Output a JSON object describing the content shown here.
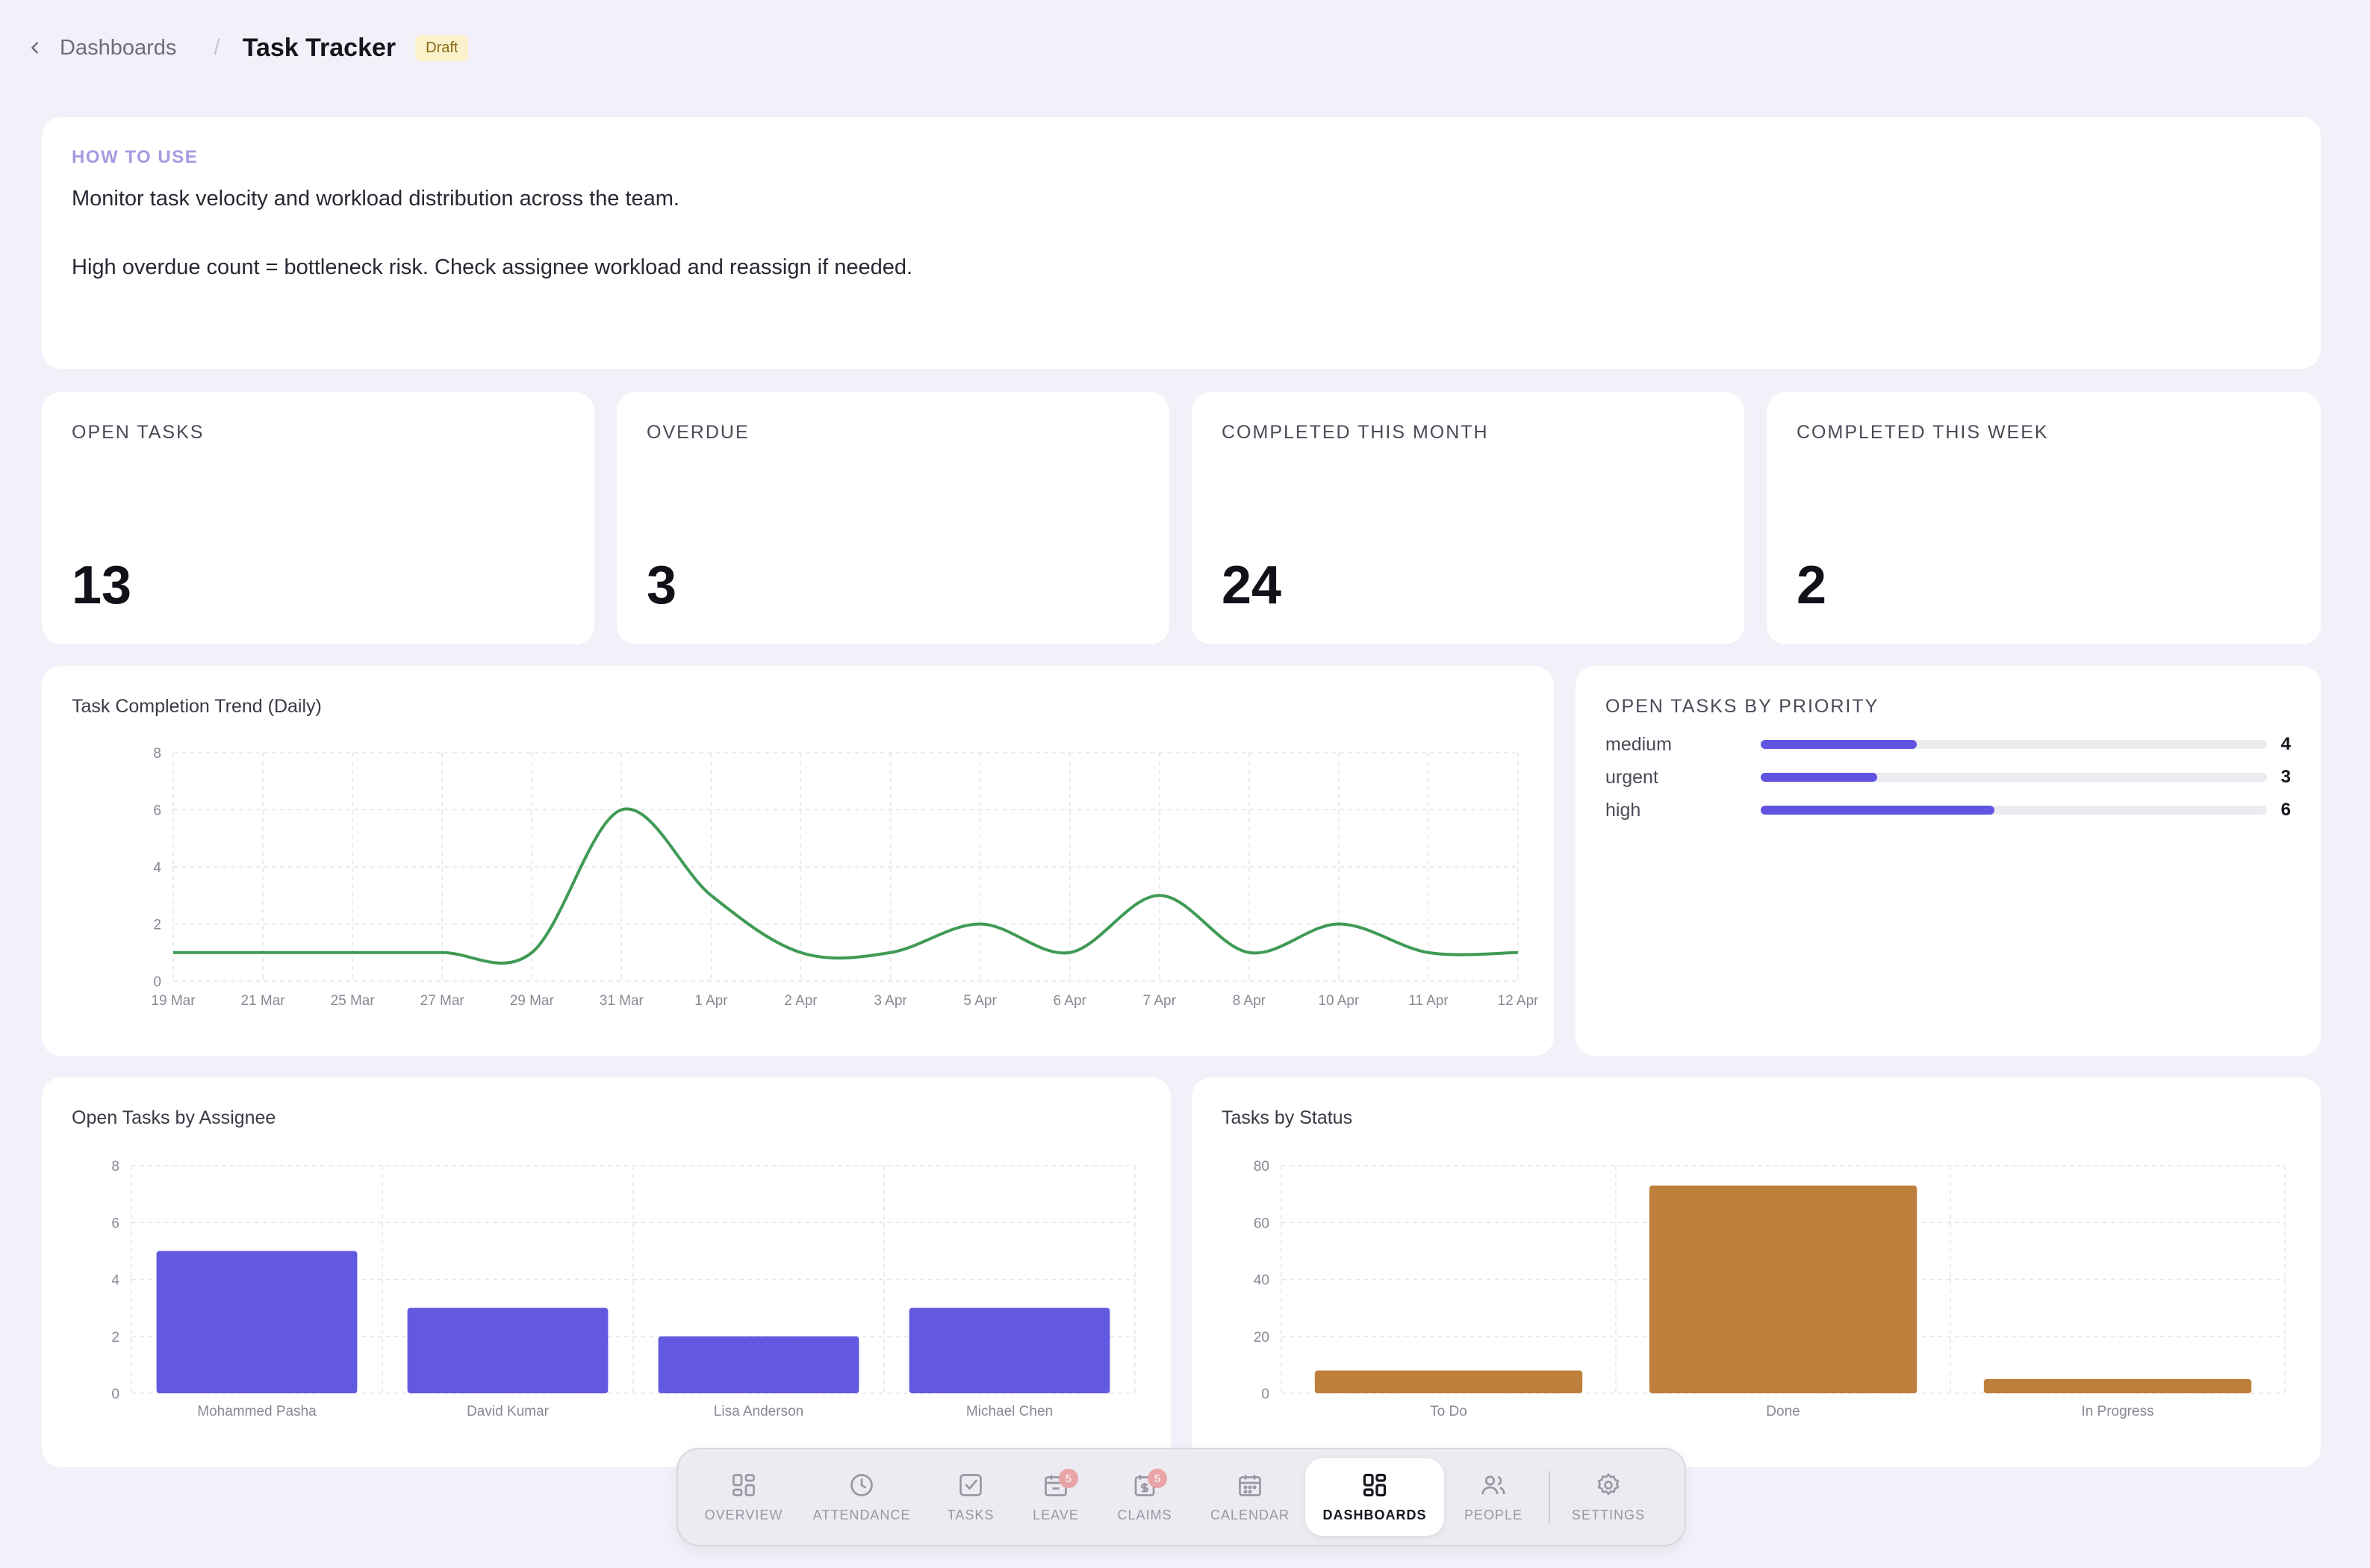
{
  "header": {
    "back_label": "Dashboards",
    "title": "Task Tracker",
    "badge": "Draft"
  },
  "howto": {
    "label": "HOW TO USE",
    "line1": "Monitor task velocity and workload distribution across the team.",
    "line2": "High overdue count = bottleneck risk. Check assignee workload and reassign if needed."
  },
  "kpis": [
    {
      "label": "OPEN TASKS",
      "value": "13"
    },
    {
      "label": "OVERDUE",
      "value": "3"
    },
    {
      "label": "COMPLETED THIS MONTH",
      "value": "24"
    },
    {
      "label": "COMPLETED THIS WEEK",
      "value": "2"
    }
  ],
  "priority": {
    "title": "OPEN TASKS BY PRIORITY",
    "max": 13,
    "rows": [
      {
        "name": "medium",
        "count": 4
      },
      {
        "name": "urgent",
        "count": 3
      },
      {
        "name": "high",
        "count": 6
      }
    ]
  },
  "chart_data": [
    {
      "type": "line",
      "title": "Task Completion Trend (Daily)",
      "x": [
        "19 Mar",
        "21 Mar",
        "25 Mar",
        "27 Mar",
        "29 Mar",
        "31 Mar",
        "1 Apr",
        "2 Apr",
        "3 Apr",
        "5 Apr",
        "6 Apr",
        "7 Apr",
        "8 Apr",
        "10 Apr",
        "11 Apr",
        "12 Apr"
      ],
      "values": [
        1,
        1,
        1,
        1,
        1,
        6,
        3,
        1,
        1,
        2,
        1,
        3,
        1,
        2,
        1,
        1
      ],
      "ylim": [
        0,
        8
      ],
      "yticks": [
        0,
        2,
        4,
        6,
        8
      ],
      "color": "#3f9a54",
      "grid": true
    },
    {
      "type": "bar",
      "title": "Open Tasks by Assignee",
      "categories": [
        "Mohammed Pasha",
        "David Kumar",
        "Lisa Anderson",
        "Michael Chen"
      ],
      "values": [
        5,
        3,
        2,
        3
      ],
      "ylim": [
        0,
        8
      ],
      "yticks": [
        0,
        2,
        4,
        6,
        8
      ],
      "color": "#6259e0",
      "grid": true
    },
    {
      "type": "bar",
      "title": "Tasks by Status",
      "categories": [
        "To Do",
        "Done",
        "In Progress"
      ],
      "values": [
        8,
        73,
        5
      ],
      "ylim": [
        0,
        80
      ],
      "yticks": [
        0,
        20,
        40,
        60,
        80
      ],
      "color": "#bf7f3c",
      "grid": true
    }
  ],
  "nav": {
    "items": [
      {
        "label": "OVERVIEW",
        "icon": "grid-icon"
      },
      {
        "label": "ATTENDANCE",
        "icon": "clock-icon"
      },
      {
        "label": "TASKS",
        "icon": "checkbox-icon"
      },
      {
        "label": "LEAVE",
        "icon": "calendar-minus-icon",
        "badge": "5"
      },
      {
        "label": "CLAIMS",
        "icon": "receipt-icon",
        "badge": "5"
      },
      {
        "label": "CALENDAR",
        "icon": "calendar-icon"
      },
      {
        "label": "DASHBOARDS",
        "icon": "dashboard-icon"
      },
      {
        "label": "PEOPLE",
        "icon": "people-icon"
      },
      {
        "label": "SETTINGS",
        "icon": "gear-icon"
      }
    ]
  }
}
